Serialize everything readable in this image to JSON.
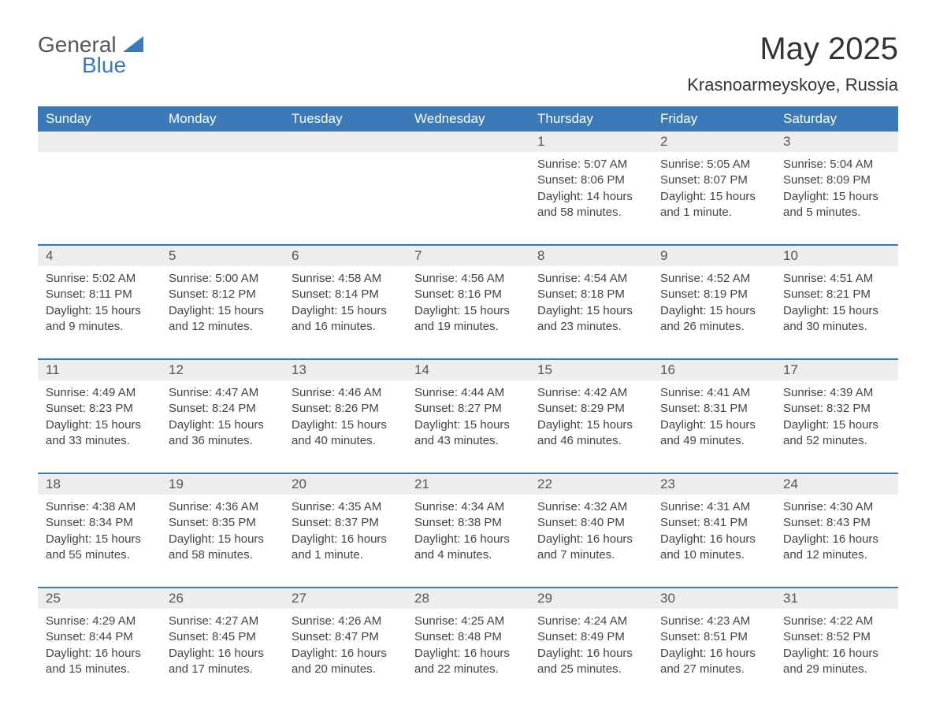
{
  "brand": {
    "word1": "General",
    "word2": "Blue",
    "logo_color": "#3a7ab8"
  },
  "title": "May 2025",
  "location": "Krasnoarmeyskoye, Russia",
  "colors": {
    "header_bg": "#3a7ab8",
    "daynum_bg": "#ededed",
    "text": "#333333",
    "body_text": "#444444",
    "border": "#3a7ab8"
  },
  "weekdays": [
    "Sunday",
    "Monday",
    "Tuesday",
    "Wednesday",
    "Thursday",
    "Friday",
    "Saturday"
  ],
  "weeks": [
    [
      {
        "n": "",
        "sunrise": "",
        "sunset": "",
        "daylight": ""
      },
      {
        "n": "",
        "sunrise": "",
        "sunset": "",
        "daylight": ""
      },
      {
        "n": "",
        "sunrise": "",
        "sunset": "",
        "daylight": ""
      },
      {
        "n": "",
        "sunrise": "",
        "sunset": "",
        "daylight": ""
      },
      {
        "n": "1",
        "sunrise": "Sunrise: 5:07 AM",
        "sunset": "Sunset: 8:06 PM",
        "daylight": "Daylight: 14 hours and 58 minutes."
      },
      {
        "n": "2",
        "sunrise": "Sunrise: 5:05 AM",
        "sunset": "Sunset: 8:07 PM",
        "daylight": "Daylight: 15 hours and 1 minute."
      },
      {
        "n": "3",
        "sunrise": "Sunrise: 5:04 AM",
        "sunset": "Sunset: 8:09 PM",
        "daylight": "Daylight: 15 hours and 5 minutes."
      }
    ],
    [
      {
        "n": "4",
        "sunrise": "Sunrise: 5:02 AM",
        "sunset": "Sunset: 8:11 PM",
        "daylight": "Daylight: 15 hours and 9 minutes."
      },
      {
        "n": "5",
        "sunrise": "Sunrise: 5:00 AM",
        "sunset": "Sunset: 8:12 PM",
        "daylight": "Daylight: 15 hours and 12 minutes."
      },
      {
        "n": "6",
        "sunrise": "Sunrise: 4:58 AM",
        "sunset": "Sunset: 8:14 PM",
        "daylight": "Daylight: 15 hours and 16 minutes."
      },
      {
        "n": "7",
        "sunrise": "Sunrise: 4:56 AM",
        "sunset": "Sunset: 8:16 PM",
        "daylight": "Daylight: 15 hours and 19 minutes."
      },
      {
        "n": "8",
        "sunrise": "Sunrise: 4:54 AM",
        "sunset": "Sunset: 8:18 PM",
        "daylight": "Daylight: 15 hours and 23 minutes."
      },
      {
        "n": "9",
        "sunrise": "Sunrise: 4:52 AM",
        "sunset": "Sunset: 8:19 PM",
        "daylight": "Daylight: 15 hours and 26 minutes."
      },
      {
        "n": "10",
        "sunrise": "Sunrise: 4:51 AM",
        "sunset": "Sunset: 8:21 PM",
        "daylight": "Daylight: 15 hours and 30 minutes."
      }
    ],
    [
      {
        "n": "11",
        "sunrise": "Sunrise: 4:49 AM",
        "sunset": "Sunset: 8:23 PM",
        "daylight": "Daylight: 15 hours and 33 minutes."
      },
      {
        "n": "12",
        "sunrise": "Sunrise: 4:47 AM",
        "sunset": "Sunset: 8:24 PM",
        "daylight": "Daylight: 15 hours and 36 minutes."
      },
      {
        "n": "13",
        "sunrise": "Sunrise: 4:46 AM",
        "sunset": "Sunset: 8:26 PM",
        "daylight": "Daylight: 15 hours and 40 minutes."
      },
      {
        "n": "14",
        "sunrise": "Sunrise: 4:44 AM",
        "sunset": "Sunset: 8:27 PM",
        "daylight": "Daylight: 15 hours and 43 minutes."
      },
      {
        "n": "15",
        "sunrise": "Sunrise: 4:42 AM",
        "sunset": "Sunset: 8:29 PM",
        "daylight": "Daylight: 15 hours and 46 minutes."
      },
      {
        "n": "16",
        "sunrise": "Sunrise: 4:41 AM",
        "sunset": "Sunset: 8:31 PM",
        "daylight": "Daylight: 15 hours and 49 minutes."
      },
      {
        "n": "17",
        "sunrise": "Sunrise: 4:39 AM",
        "sunset": "Sunset: 8:32 PM",
        "daylight": "Daylight: 15 hours and 52 minutes."
      }
    ],
    [
      {
        "n": "18",
        "sunrise": "Sunrise: 4:38 AM",
        "sunset": "Sunset: 8:34 PM",
        "daylight": "Daylight: 15 hours and 55 minutes."
      },
      {
        "n": "19",
        "sunrise": "Sunrise: 4:36 AM",
        "sunset": "Sunset: 8:35 PM",
        "daylight": "Daylight: 15 hours and 58 minutes."
      },
      {
        "n": "20",
        "sunrise": "Sunrise: 4:35 AM",
        "sunset": "Sunset: 8:37 PM",
        "daylight": "Daylight: 16 hours and 1 minute."
      },
      {
        "n": "21",
        "sunrise": "Sunrise: 4:34 AM",
        "sunset": "Sunset: 8:38 PM",
        "daylight": "Daylight: 16 hours and 4 minutes."
      },
      {
        "n": "22",
        "sunrise": "Sunrise: 4:32 AM",
        "sunset": "Sunset: 8:40 PM",
        "daylight": "Daylight: 16 hours and 7 minutes."
      },
      {
        "n": "23",
        "sunrise": "Sunrise: 4:31 AM",
        "sunset": "Sunset: 8:41 PM",
        "daylight": "Daylight: 16 hours and 10 minutes."
      },
      {
        "n": "24",
        "sunrise": "Sunrise: 4:30 AM",
        "sunset": "Sunset: 8:43 PM",
        "daylight": "Daylight: 16 hours and 12 minutes."
      }
    ],
    [
      {
        "n": "25",
        "sunrise": "Sunrise: 4:29 AM",
        "sunset": "Sunset: 8:44 PM",
        "daylight": "Daylight: 16 hours and 15 minutes."
      },
      {
        "n": "26",
        "sunrise": "Sunrise: 4:27 AM",
        "sunset": "Sunset: 8:45 PM",
        "daylight": "Daylight: 16 hours and 17 minutes."
      },
      {
        "n": "27",
        "sunrise": "Sunrise: 4:26 AM",
        "sunset": "Sunset: 8:47 PM",
        "daylight": "Daylight: 16 hours and 20 minutes."
      },
      {
        "n": "28",
        "sunrise": "Sunrise: 4:25 AM",
        "sunset": "Sunset: 8:48 PM",
        "daylight": "Daylight: 16 hours and 22 minutes."
      },
      {
        "n": "29",
        "sunrise": "Sunrise: 4:24 AM",
        "sunset": "Sunset: 8:49 PM",
        "daylight": "Daylight: 16 hours and 25 minutes."
      },
      {
        "n": "30",
        "sunrise": "Sunrise: 4:23 AM",
        "sunset": "Sunset: 8:51 PM",
        "daylight": "Daylight: 16 hours and 27 minutes."
      },
      {
        "n": "31",
        "sunrise": "Sunrise: 4:22 AM",
        "sunset": "Sunset: 8:52 PM",
        "daylight": "Daylight: 16 hours and 29 minutes."
      }
    ]
  ]
}
